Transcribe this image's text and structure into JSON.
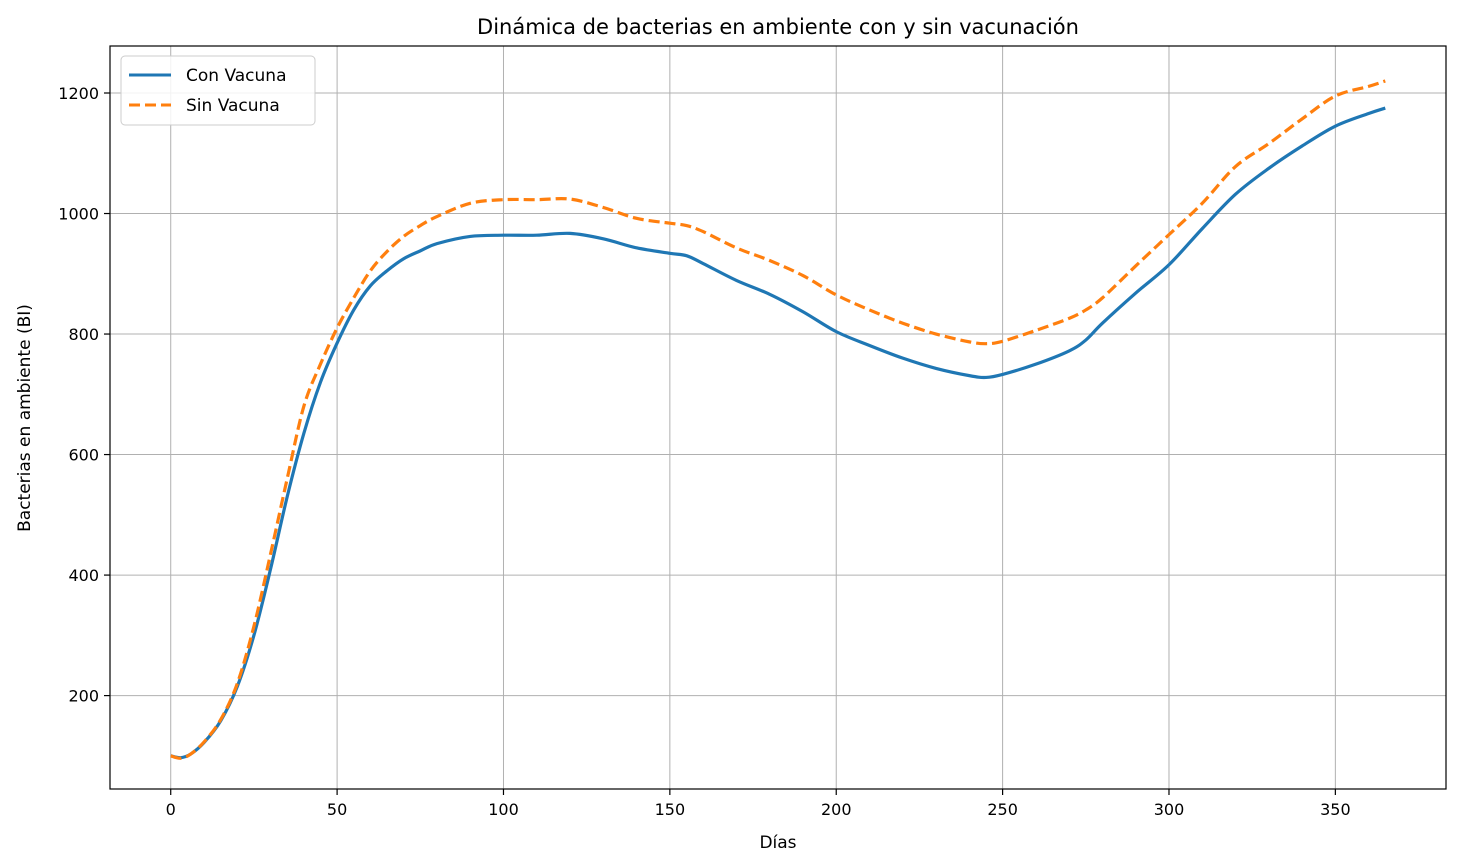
{
  "chart_data": {
    "type": "line",
    "title": "Dinámica de bacterias en ambiente con y sin vacunación",
    "xlabel": "Días",
    "ylabel": "Bacterias en ambiente (BI)",
    "xlim": [
      -18.25,
      383.25
    ],
    "ylim": [
      45,
      1278
    ],
    "xticks": [
      0,
      50,
      100,
      150,
      200,
      250,
      300,
      350
    ],
    "yticks": [
      200,
      400,
      600,
      800,
      1000,
      1200
    ],
    "grid": true,
    "legend_position": "upper-left",
    "series": [
      {
        "name": "Con Vacuna",
        "color": "#1f77b4",
        "style": "solid",
        "x": [
          0,
          3,
          6,
          10,
          15,
          20,
          25,
          30,
          35,
          40,
          45,
          50,
          55,
          60,
          65,
          70,
          75,
          80,
          90,
          100,
          110,
          120,
          130,
          140,
          150,
          155,
          160,
          170,
          180,
          190,
          200,
          210,
          220,
          230,
          240,
          245,
          250,
          260,
          270,
          275,
          280,
          290,
          300,
          310,
          320,
          330,
          340,
          350,
          360,
          365
        ],
        "y": [
          100,
          97,
          103,
          122,
          158,
          215,
          300,
          410,
          530,
          635,
          720,
          785,
          840,
          880,
          905,
          925,
          938,
          950,
          962,
          964,
          964,
          967,
          958,
          943,
          934,
          930,
          917,
          889,
          866,
          837,
          804,
          781,
          760,
          743,
          731,
          728,
          733,
          750,
          772,
          790,
          818,
          868,
          915,
          975,
          1032,
          1075,
          1112,
          1145,
          1166,
          1175
        ]
      },
      {
        "name": "Sin Vacuna",
        "color": "#ff7f0e",
        "style": "dashed",
        "x": [
          0,
          3,
          6,
          10,
          15,
          20,
          25,
          30,
          35,
          40,
          45,
          50,
          55,
          60,
          65,
          70,
          75,
          80,
          90,
          100,
          110,
          120,
          130,
          140,
          150,
          155,
          160,
          170,
          180,
          190,
          200,
          210,
          220,
          230,
          240,
          245,
          250,
          260,
          270,
          275,
          280,
          290,
          300,
          310,
          320,
          330,
          340,
          350,
          360,
          365
        ],
        "y": [
          100,
          96,
          103,
          123,
          160,
          220,
          315,
          435,
          560,
          680,
          750,
          810,
          860,
          905,
          937,
          962,
          980,
          995,
          1017,
          1023,
          1023,
          1024,
          1010,
          992,
          984,
          980,
          970,
          943,
          922,
          897,
          865,
          840,
          818,
          800,
          787,
          784,
          788,
          806,
          826,
          840,
          860,
          913,
          965,
          1017,
          1078,
          1116,
          1157,
          1195,
          1211,
          1220
        ]
      }
    ]
  }
}
